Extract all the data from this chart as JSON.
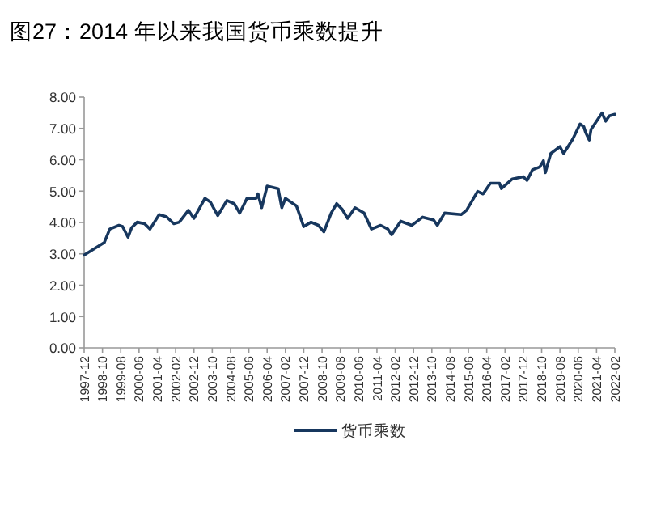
{
  "chart_data": {
    "type": "line",
    "title": "图27：2014 年以来我国货币乘数提升",
    "x": [
      "1997-12",
      "1998-11",
      "1999-02",
      "1999-07",
      "1999-09",
      "1999-12",
      "2000-02",
      "2000-05",
      "2000-09",
      "2000-12",
      "2001-05",
      "2001-09",
      "2002-01",
      "2002-04",
      "2002-09",
      "2002-12",
      "2003-06",
      "2003-09",
      "2004-01",
      "2004-06",
      "2004-10",
      "2005-01",
      "2005-05",
      "2005-10",
      "2005-11",
      "2006-01",
      "2006-04",
      "2006-10",
      "2006-12",
      "2007-02",
      "2007-08",
      "2007-12",
      "2008-04",
      "2008-08",
      "2008-11",
      "2009-03",
      "2009-06",
      "2009-09",
      "2009-12",
      "2010-04",
      "2010-09",
      "2011-01",
      "2011-06",
      "2011-10",
      "2011-12",
      "2012-05",
      "2012-11",
      "2013-05",
      "2013-11",
      "2014-01",
      "2014-05",
      "2015-02",
      "2015-05",
      "2015-11",
      "2016-02",
      "2016-06",
      "2016-11",
      "2016-12",
      "2017-06",
      "2017-12",
      "2018-02",
      "2018-05",
      "2018-09",
      "2018-11",
      "2018-12",
      "2019-03",
      "2019-08",
      "2019-10",
      "2020-03",
      "2020-07",
      "2020-09",
      "2020-10",
      "2020-12",
      "2021-01",
      "2021-07",
      "2021-09",
      "2021-11",
      "2022-02"
    ],
    "series": [
      {
        "name": "货币乘数",
        "color": "#17375e",
        "values": [
          2.96,
          3.36,
          3.79,
          3.91,
          3.87,
          3.53,
          3.84,
          4.01,
          3.96,
          3.79,
          4.25,
          4.18,
          3.96,
          4.01,
          4.39,
          4.13,
          4.77,
          4.65,
          4.22,
          4.7,
          4.6,
          4.3,
          4.77,
          4.77,
          4.91,
          4.47,
          5.16,
          5.08,
          4.47,
          4.77,
          4.53,
          3.87,
          4.01,
          3.91,
          3.7,
          4.3,
          4.6,
          4.42,
          4.13,
          4.47,
          4.3,
          3.79,
          3.91,
          3.79,
          3.61,
          4.04,
          3.91,
          4.17,
          4.08,
          3.91,
          4.3,
          4.25,
          4.39,
          4.99,
          4.91,
          5.25,
          5.25,
          5.08,
          5.39,
          5.46,
          5.34,
          5.68,
          5.77,
          5.97,
          5.59,
          6.2,
          6.42,
          6.2,
          6.66,
          7.14,
          7.06,
          6.88,
          6.63,
          6.97,
          7.49,
          7.23,
          7.4,
          7.45
        ]
      }
    ],
    "xlim": [
      "1997-12",
      "2022-02"
    ],
    "xticks": [
      "1997-12",
      "1998-10",
      "1999-08",
      "2000-06",
      "2001-04",
      "2002-02",
      "2002-12",
      "2003-10",
      "2004-08",
      "2005-06",
      "2006-04",
      "2007-02",
      "2007-12",
      "2008-10",
      "2009-08",
      "2010-06",
      "2011-04",
      "2012-02",
      "2012-12",
      "2013-10",
      "2014-08",
      "2015-06",
      "2016-04",
      "2017-02",
      "2017-12",
      "2018-10",
      "2019-08",
      "2020-06",
      "2021-04",
      "2022-02"
    ],
    "ylim": [
      0,
      8
    ],
    "yticks": [
      {
        "value": 0,
        "label": "0.00"
      },
      {
        "value": 1,
        "label": "1.00"
      },
      {
        "value": 2,
        "label": "2.00"
      },
      {
        "value": 3,
        "label": "3.00"
      },
      {
        "value": 4,
        "label": "4.00"
      },
      {
        "value": 5,
        "label": "5.00"
      },
      {
        "value": 6,
        "label": "6.00"
      },
      {
        "value": 7,
        "label": "7.00"
      },
      {
        "value": 8,
        "label": "8.00"
      }
    ],
    "grid": false,
    "legend": "bottom",
    "marker": "none",
    "line_style": "solid"
  }
}
